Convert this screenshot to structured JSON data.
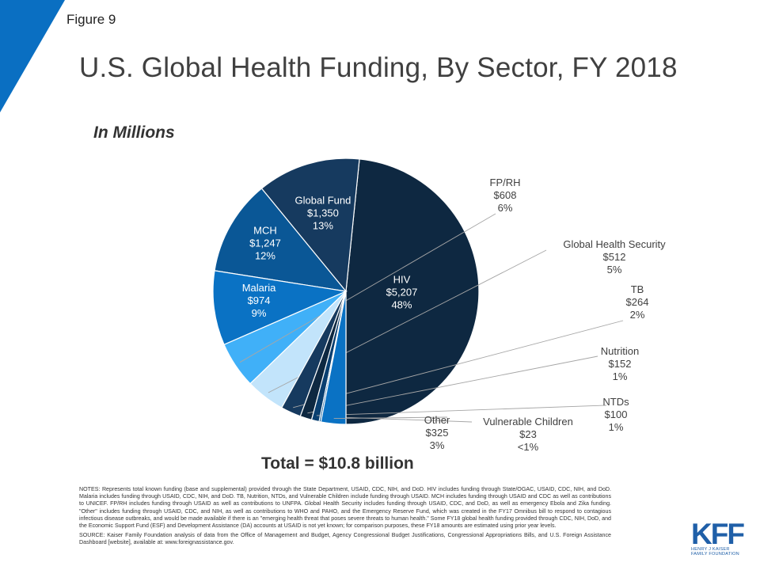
{
  "figure_label": "Figure 9",
  "title": "U.S. Global Health Funding, By Sector, FY 2018",
  "subtitle": "In Millions",
  "total": "Total = $10.8 billion",
  "notes": "NOTES: Represents total known funding (base and supplemental) provided through the State Department, USAID, CDC, NIH, and DoD. HIV includes funding through State/OGAC, USAID, CDC, NIH, and DoD. Malaria includes funding through USAID, CDC, NIH, and DoD. TB, Nutrition, NTDs, and Vulnerable Children include funding through USAID. MCH includes funding through USAID and CDC as well as contributions to UNICEF. FP/RH includes funding through USAID as well as contributions to UNFPA. Global Health Security includes funding through USAID, CDC, and DoD, as well as emergency Ebola and Zika funding. \"Other\" includes funding through USAID, CDC, and NIH, as well as contributions to WHO and PAHO, and the Emergency Reserve Fund, which was created in the FY17 Omnibus bill to respond to contagious infectious disease outbreaks, and would be made available if there is an \"emerging health threat that poses severe threats to human health.\" Some FY18 global health funding provided through CDC, NIH, DoD, and the Economic Support Fund (ESF) and Development Assistance (DA) accounts at USAID is not yet known; for comparison purposes, these FY18 amounts are estimated using prior year levels.",
  "source": "SOURCE: Kaiser Family Foundation analysis of data from the Office of Management and Budget, Agency Congressional Budget Justifications, Congressional Appropriations Bills, and U.S. Foreign Assistance Dashboard [website], available at: www.foreignassistance.gov.",
  "logo": {
    "mark": "KFF",
    "line1": "HENRY J KAISER",
    "line2": "FAMILY FOUNDATION"
  },
  "colors": {
    "accent": "#0a6fc2",
    "dark_navy": "#0e2841",
    "navy": "#163a5f",
    "blue": "#0a5796",
    "mid_blue": "#0a72c4",
    "light_blue": "#40b0f8",
    "pale_blue": "#c2e4fb",
    "logo": "#1f5fa8"
  },
  "chart_data": {
    "type": "pie",
    "unit": "$ millions",
    "start_angle_deg": 270,
    "direction": "counterclockwise",
    "slices": [
      {
        "name": "HIV",
        "amount": "$5,207",
        "pct": "48%",
        "value": 5207,
        "color": "#0e2841",
        "label_inside": true
      },
      {
        "name": "Global Fund",
        "amount": "$1,350",
        "pct": "13%",
        "value": 1350,
        "color": "#163a5f",
        "label_inside": true
      },
      {
        "name": "MCH",
        "amount": "$1,247",
        "pct": "12%",
        "value": 1247,
        "color": "#0a5796",
        "label_inside": true
      },
      {
        "name": "Malaria",
        "amount": "$974",
        "pct": "9%",
        "value": 974,
        "color": "#0a72c4",
        "label_inside": true
      },
      {
        "name": "FP/RH",
        "amount": "$608",
        "pct": "6%",
        "value": 608,
        "color": "#40b0f8",
        "label_inside": false
      },
      {
        "name": "Global Health Security",
        "amount": "$512",
        "pct": "5%",
        "value": 512,
        "color": "#c2e4fb",
        "label_inside": false
      },
      {
        "name": "TB",
        "amount": "$264",
        "pct": "2%",
        "value": 264,
        "color": "#163a5f",
        "label_inside": false
      },
      {
        "name": "Nutrition",
        "amount": "$152",
        "pct": "1%",
        "value": 152,
        "color": "#0e2841",
        "label_inside": false
      },
      {
        "name": "NTDs",
        "amount": "$100",
        "pct": "1%",
        "value": 100,
        "color": "#0a3f70",
        "label_inside": false
      },
      {
        "name": "Vulnerable Children",
        "amount": "$23",
        "pct": "<1%",
        "value": 23,
        "color": "#0a5796",
        "label_inside": false
      },
      {
        "name": "Other",
        "amount": "$325",
        "pct": "3%",
        "value": 325,
        "color": "#0a72c4",
        "label_inside": false
      }
    ]
  }
}
